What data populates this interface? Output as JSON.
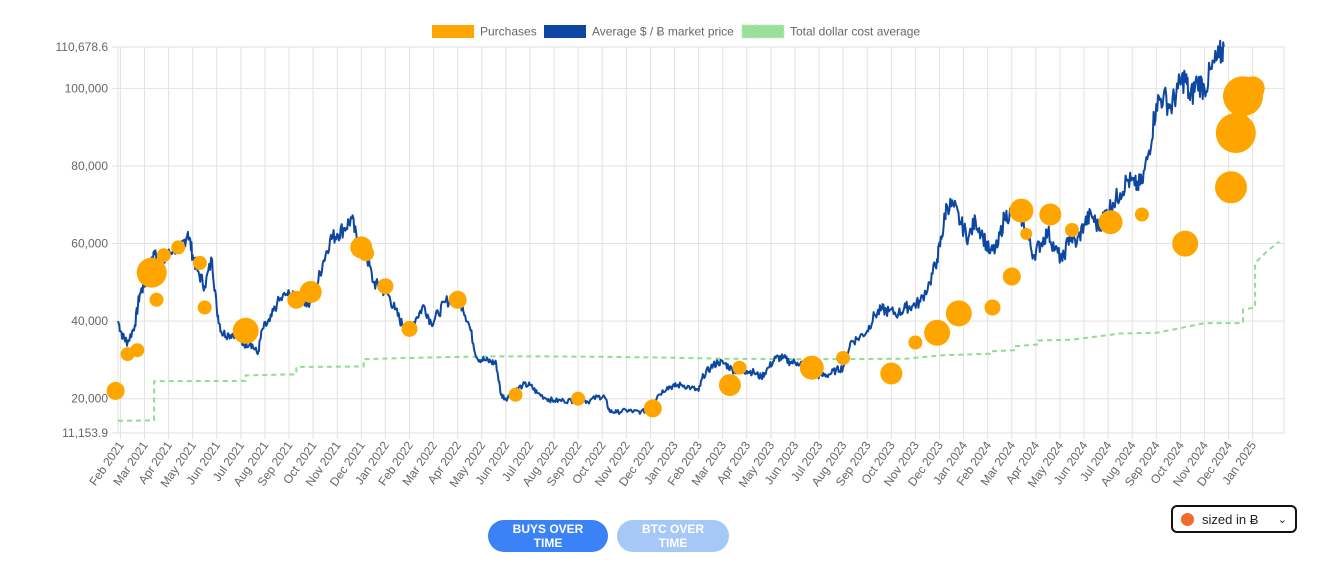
{
  "chart_data": {
    "type": "line",
    "legend": [
      {
        "label": "Purchases",
        "color": "#ffa500"
      },
      {
        "label": "Average $ / Ƀ market price",
        "color": "#0d47a1"
      },
      {
        "label": "Total dollar cost average",
        "color": "#90dc90"
      }
    ],
    "y_ticks": [
      {
        "label": "110,678.6",
        "value": 110678.6
      },
      {
        "label": "100,000",
        "value": 100000
      },
      {
        "label": "80,000",
        "value": 80000
      },
      {
        "label": "60,000",
        "value": 60000
      },
      {
        "label": "40,000",
        "value": 40000
      },
      {
        "label": "20,000",
        "value": 20000
      },
      {
        "label": "11,153.9",
        "value": 11153.9
      }
    ],
    "ylim": [
      11153.9,
      110678.6
    ],
    "x_ticks": [
      "Feb 2021",
      "Mar 2021",
      "Apr 2021",
      "May 2021",
      "Jun 2021",
      "Jul 2021",
      "Aug 2021",
      "Sep 2021",
      "Oct 2021",
      "Nov 2021",
      "Dec 2021",
      "Jan 2022",
      "Feb 2022",
      "Mar 2022",
      "Apr 2022",
      "May 2022",
      "Jun 2022",
      "Jul 2022",
      "Aug 2022",
      "Sep 2022",
      "Oct 2022",
      "Nov 2022",
      "Dec 2022",
      "Jan 2023",
      "Feb 2023",
      "Mar 2023",
      "Apr 2023",
      "May 2023",
      "Jun 2023",
      "Jul 2023",
      "Aug 2023",
      "Sep 2023",
      "Oct 2023",
      "Nov 2023",
      "Dec 2023",
      "Jan 2024",
      "Feb 2024",
      "Mar 2024",
      "Apr 2024",
      "May 2024",
      "Jun 2024",
      "Jul 2024",
      "Aug 2024",
      "Sep 2024",
      "Oct 2024",
      "Nov 2024",
      "Dec 2024",
      "Jan 2025"
    ],
    "xlim_months": [
      -0.1,
      48.3
    ],
    "market_price": [
      [
        -0.1,
        40000
      ],
      [
        0.1,
        36000
      ],
      [
        0.3,
        34500
      ],
      [
        0.6,
        39000
      ],
      [
        0.8,
        47000
      ],
      [
        1.0,
        49500
      ],
      [
        1.2,
        52000
      ],
      [
        1.4,
        58000
      ],
      [
        1.6,
        55000
      ],
      [
        1.9,
        56000
      ],
      [
        2.2,
        59000
      ],
      [
        2.5,
        58500
      ],
      [
        2.8,
        63000
      ],
      [
        3.0,
        57000
      ],
      [
        3.2,
        53000
      ],
      [
        3.5,
        49000
      ],
      [
        3.8,
        56000
      ],
      [
        4.0,
        43000
      ],
      [
        4.2,
        37000
      ],
      [
        4.5,
        36500
      ],
      [
        4.8,
        37000
      ],
      [
        5.1,
        34000
      ],
      [
        5.4,
        34500
      ],
      [
        5.7,
        31500
      ],
      [
        5.9,
        38000
      ],
      [
        6.2,
        40000
      ],
      [
        6.5,
        44500
      ],
      [
        6.9,
        47000
      ],
      [
        7.2,
        46000
      ],
      [
        7.5,
        47000
      ],
      [
        7.8,
        44000
      ],
      [
        8.1,
        48000
      ],
      [
        8.4,
        55000
      ],
      [
        8.7,
        61000
      ],
      [
        9.0,
        62500
      ],
      [
        9.3,
        64000
      ],
      [
        9.6,
        66500
      ],
      [
        9.9,
        58500
      ],
      [
        10.2,
        57500
      ],
      [
        10.5,
        50000
      ],
      [
        10.8,
        48500
      ],
      [
        11.1,
        47000
      ],
      [
        11.4,
        43000
      ],
      [
        11.7,
        39000
      ],
      [
        12.0,
        38000
      ],
      [
        12.3,
        41000
      ],
      [
        12.6,
        44000
      ],
      [
        12.9,
        39500
      ],
      [
        13.2,
        42000
      ],
      [
        13.5,
        45000
      ],
      [
        13.9,
        46000
      ],
      [
        14.2,
        44000
      ],
      [
        14.5,
        38500
      ],
      [
        14.8,
        30500
      ],
      [
        15.1,
        30000
      ],
      [
        15.4,
        29500
      ],
      [
        15.6,
        29000
      ],
      [
        15.8,
        21000
      ],
      [
        16.0,
        20000
      ],
      [
        16.3,
        21500
      ],
      [
        16.7,
        23500
      ],
      [
        17.0,
        23500
      ],
      [
        17.3,
        21500
      ],
      [
        17.7,
        20000
      ],
      [
        18.0,
        19500
      ],
      [
        18.4,
        19500
      ],
      [
        18.8,
        19500
      ],
      [
        19.1,
        20200
      ],
      [
        19.4,
        19200
      ],
      [
        19.8,
        20500
      ],
      [
        20.1,
        20500
      ],
      [
        20.3,
        16800
      ],
      [
        20.6,
        16500
      ],
      [
        21.0,
        17000
      ],
      [
        21.3,
        16700
      ],
      [
        21.6,
        16600
      ],
      [
        22.0,
        17200
      ],
      [
        22.3,
        20800
      ],
      [
        22.7,
        23000
      ],
      [
        23.0,
        23200
      ],
      [
        23.3,
        23600
      ],
      [
        23.7,
        22800
      ],
      [
        24.0,
        22000
      ],
      [
        24.2,
        26000
      ],
      [
        24.5,
        28000
      ],
      [
        24.8,
        29500
      ],
      [
        25.1,
        29000
      ],
      [
        25.4,
        27500
      ],
      [
        25.7,
        27000
      ],
      [
        26.0,
        27200
      ],
      [
        26.3,
        26800
      ],
      [
        26.6,
        25500
      ],
      [
        26.9,
        28000
      ],
      [
        27.2,
        30500
      ],
      [
        27.5,
        30500
      ],
      [
        27.8,
        29500
      ],
      [
        28.1,
        29300
      ],
      [
        28.5,
        29000
      ],
      [
        28.8,
        26000
      ],
      [
        29.1,
        26000
      ],
      [
        29.4,
        26200
      ],
      [
        29.7,
        27300
      ],
      [
        30.0,
        28000
      ],
      [
        30.3,
        34500
      ],
      [
        30.6,
        35500
      ],
      [
        31.0,
        37500
      ],
      [
        31.3,
        41500
      ],
      [
        31.6,
        43000
      ],
      [
        31.9,
        42500
      ],
      [
        32.3,
        42000
      ],
      [
        32.6,
        43500
      ],
      [
        32.9,
        44000
      ],
      [
        33.2,
        45000
      ],
      [
        33.6,
        50000
      ],
      [
        33.9,
        56000
      ],
      [
        34.1,
        62000
      ],
      [
        34.3,
        70000
      ],
      [
        34.6,
        69500
      ],
      [
        34.9,
        65000
      ],
      [
        35.2,
        61500
      ],
      [
        35.5,
        66000
      ],
      [
        35.8,
        62000
      ],
      [
        36.1,
        57500
      ],
      [
        36.4,
        59000
      ],
      [
        36.7,
        67000
      ],
      [
        37.0,
        68000
      ],
      [
        37.3,
        68500
      ],
      [
        37.6,
        63000
      ],
      [
        37.9,
        57000
      ],
      [
        38.2,
        60000
      ],
      [
        38.5,
        63000
      ],
      [
        38.8,
        58500
      ],
      [
        39.1,
        55500
      ],
      [
        39.4,
        62000
      ],
      [
        39.7,
        60000
      ],
      [
        40.0,
        65000
      ],
      [
        40.3,
        67500
      ],
      [
        40.6,
        64000
      ],
      [
        40.9,
        68000
      ],
      [
        41.2,
        70500
      ],
      [
        41.5,
        73000
      ],
      [
        41.8,
        76500
      ],
      [
        42.1,
        75000
      ],
      [
        42.4,
        75500
      ],
      [
        42.7,
        84000
      ],
      [
        43.0,
        96000
      ],
      [
        43.3,
        98000
      ],
      [
        43.6,
        95000
      ],
      [
        43.9,
        100000
      ],
      [
        44.2,
        103000
      ],
      [
        44.4,
        97000
      ],
      [
        44.7,
        102000
      ],
      [
        45.0,
        100000
      ],
      [
        45.3,
        105000
      ],
      [
        45.6,
        108000
      ],
      [
        45.8,
        110678.6
      ]
    ],
    "dca": [
      [
        -0.1,
        14300
      ],
      [
        1.4,
        14400
      ],
      [
        1.4,
        24500
      ],
      [
        5.2,
        24600
      ],
      [
        5.2,
        26000
      ],
      [
        7.3,
        26300
      ],
      [
        7.3,
        28200
      ],
      [
        10.1,
        28300
      ],
      [
        10.1,
        30200
      ],
      [
        12.6,
        30600
      ],
      [
        15.1,
        30900
      ],
      [
        17.6,
        30900
      ],
      [
        20.1,
        30800
      ],
      [
        22.6,
        30600
      ],
      [
        25.1,
        30300
      ],
      [
        27.6,
        30200
      ],
      [
        30.1,
        30200
      ],
      [
        32.6,
        30300
      ],
      [
        34.1,
        31200
      ],
      [
        36.1,
        31600
      ],
      [
        36.1,
        32200
      ],
      [
        37.1,
        32500
      ],
      [
        37.1,
        33500
      ],
      [
        38.1,
        34000
      ],
      [
        38.1,
        35000
      ],
      [
        39.5,
        35200
      ],
      [
        41.5,
        36800
      ],
      [
        43.0,
        37000
      ],
      [
        44.0,
        38200
      ],
      [
        45.0,
        39500
      ],
      [
        46.6,
        39500
      ],
      [
        46.6,
        43000
      ],
      [
        47.1,
        43500
      ],
      [
        47.1,
        55000
      ],
      [
        47.6,
        58000
      ],
      [
        48.1,
        60500
      ]
    ],
    "purchases": [
      [
        -0.2,
        22000,
        9
      ],
      [
        0.3,
        31500,
        7
      ],
      [
        0.7,
        32500,
        7
      ],
      [
        1.3,
        52500,
        15
      ],
      [
        1.5,
        45500,
        7
      ],
      [
        1.8,
        57000,
        7
      ],
      [
        2.4,
        59000,
        7
      ],
      [
        3.3,
        55000,
        7
      ],
      [
        3.5,
        43500,
        7
      ],
      [
        5.2,
        37500,
        13
      ],
      [
        7.3,
        45500,
        9
      ],
      [
        7.9,
        47500,
        11
      ],
      [
        10.0,
        59000,
        11
      ],
      [
        10.2,
        57500,
        8
      ],
      [
        11.0,
        49000,
        8
      ],
      [
        12.0,
        38000,
        8
      ],
      [
        14.0,
        45500,
        9
      ],
      [
        16.4,
        21000,
        7
      ],
      [
        19.0,
        20000,
        7
      ],
      [
        22.1,
        17500,
        9
      ],
      [
        25.3,
        23500,
        11
      ],
      [
        25.7,
        28000,
        7
      ],
      [
        28.7,
        28000,
        12
      ],
      [
        30.0,
        30500,
        7
      ],
      [
        32.0,
        26500,
        11
      ],
      [
        33.0,
        34500,
        7
      ],
      [
        33.9,
        37000,
        13
      ],
      [
        34.8,
        42000,
        13
      ],
      [
        36.2,
        43500,
        8
      ],
      [
        37.0,
        51500,
        9
      ],
      [
        37.4,
        68500,
        12
      ],
      [
        37.6,
        62500,
        6
      ],
      [
        38.6,
        67500,
        11
      ],
      [
        39.5,
        63500,
        7
      ],
      [
        41.1,
        65500,
        12
      ],
      [
        42.4,
        67500,
        7
      ],
      [
        44.2,
        60000,
        13
      ],
      [
        46.1,
        74500,
        16
      ],
      [
        46.3,
        88500,
        20
      ],
      [
        46.6,
        98000,
        20
      ],
      [
        47.0,
        100000,
        12
      ]
    ]
  },
  "controls": {
    "buys_over_time": "BUYS OVER TIME",
    "btc_over_time": "BTC OVER TIME",
    "size_select": "sized in Ƀ",
    "size_select_caret": "⌄"
  }
}
